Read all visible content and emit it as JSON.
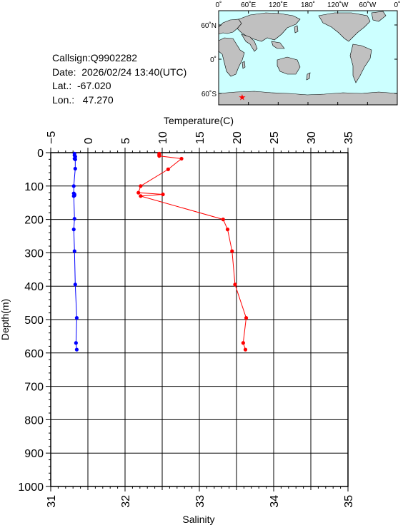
{
  "station": {
    "callsign": "Callsign:Q9902282",
    "date": "Date:  2026/02/24 13:40(UTC)",
    "lat": "Lat.:  -67.020",
    "lon": "Lon.:   47.270"
  },
  "map": {
    "lon_labels": [
      "0˚",
      "60˚E",
      "120˚E",
      "180˚",
      "120˚W",
      "60˚W",
      "0˚"
    ],
    "lat_labels": [
      "60˚N",
      "0˚",
      "60˚S"
    ],
    "marker": {
      "lon": 47.27,
      "lat": -67.02,
      "symbol": "★"
    },
    "colors": {
      "ocean": "#ccffff",
      "land": "#c0c0c0",
      "marker": "#ff0000"
    }
  },
  "chart_data": {
    "type": "line",
    "ylabel": "Depth(m)",
    "ylim": [
      1000,
      0
    ],
    "yticks": [
      "0",
      "100",
      "200",
      "300",
      "400",
      "500",
      "600",
      "700",
      "800",
      "900",
      "1000"
    ],
    "top_axis": {
      "label": "Temperature(C)",
      "range": [
        -5,
        35
      ],
      "ticks": [
        "−5",
        "0",
        "5",
        "10",
        "15",
        "20",
        "25",
        "30",
        "35"
      ]
    },
    "bottom_axis": {
      "label": "Salinity",
      "range": [
        31,
        35
      ],
      "ticks": [
        "31",
        "32",
        "33",
        "34",
        "35"
      ]
    },
    "grid": true,
    "series": [
      {
        "color": "#ff0000",
        "axis": "top",
        "depth": [
          3,
          5,
          8,
          10,
          18,
          50,
          100,
          120,
          125,
          130,
          200,
          230,
          295,
          395,
          495,
          570,
          590
        ],
        "values": [
          9.6,
          9.6,
          9.6,
          9.6,
          12.6,
          10.8,
          7.1,
          6.8,
          10.1,
          7.1,
          18.2,
          18.8,
          19.4,
          19.8,
          21.3,
          20.9,
          21.2
        ]
      },
      {
        "color": "#0000ff",
        "axis": "bottom",
        "depth": [
          3,
          8,
          12,
          18,
          20,
          48,
          100,
          122,
          125,
          128,
          130,
          198,
          230,
          295,
          395,
          495,
          570,
          590
        ],
        "values": [
          31.32,
          31.32,
          31.33,
          31.32,
          31.33,
          31.33,
          31.31,
          31.31,
          31.32,
          31.32,
          31.31,
          31.32,
          31.31,
          31.32,
          31.33,
          31.35,
          31.34,
          31.35
        ]
      }
    ]
  }
}
